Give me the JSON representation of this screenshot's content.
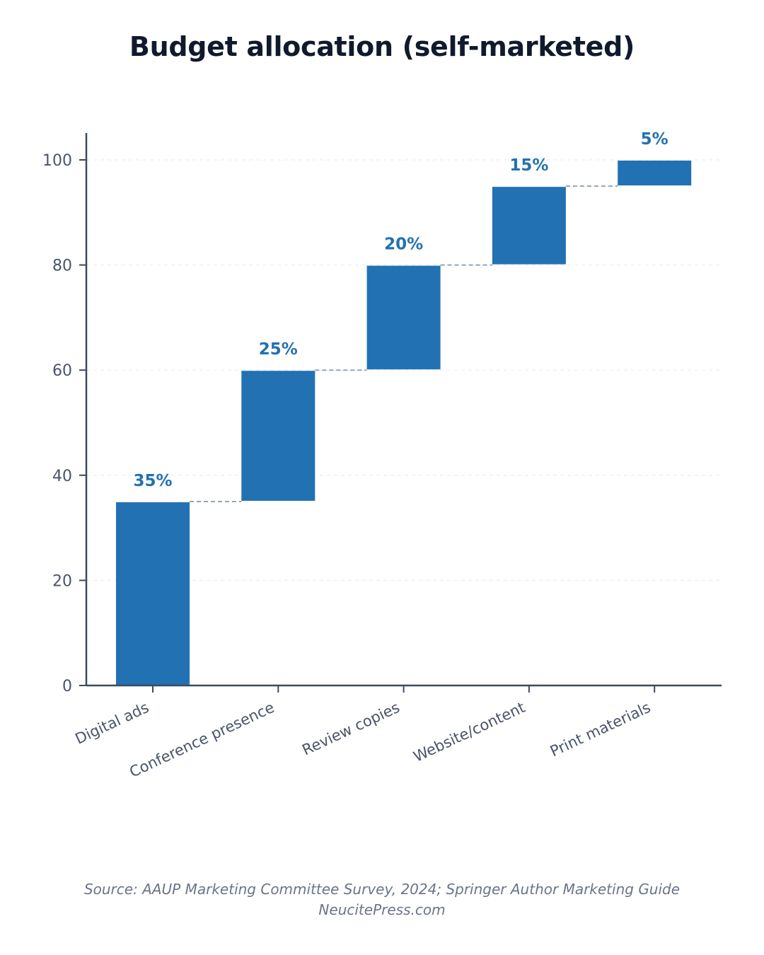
{
  "chart_data": {
    "type": "bar",
    "subtype": "waterfall",
    "title": "Budget allocation (self-marketed)",
    "categories": [
      "Digital ads",
      "Conference presence",
      "Review copies",
      "Website/content",
      "Print materials"
    ],
    "values": [
      35,
      25,
      20,
      15,
      5
    ],
    "data_labels": [
      "35%",
      "25%",
      "20%",
      "15%",
      "5%"
    ],
    "ylim": [
      0,
      100
    ],
    "yticks": [
      0,
      20,
      40,
      60,
      80,
      100
    ],
    "xlabel": "",
    "ylabel": "",
    "grid": "horizontal dashed",
    "legend": "none",
    "colors": {
      "bar": "#2271b3",
      "label": "#2271b3",
      "connector": "#94a3b8",
      "axis": "#3c4a60",
      "grid": "#eef0f3",
      "tick_text": "#4a5568",
      "category_text": "#4a5568"
    }
  },
  "footer": {
    "source": "Source: AAUP Marketing Committee Survey, 2024; Springer Author Marketing Guide",
    "site": "NeucitePress.com"
  }
}
